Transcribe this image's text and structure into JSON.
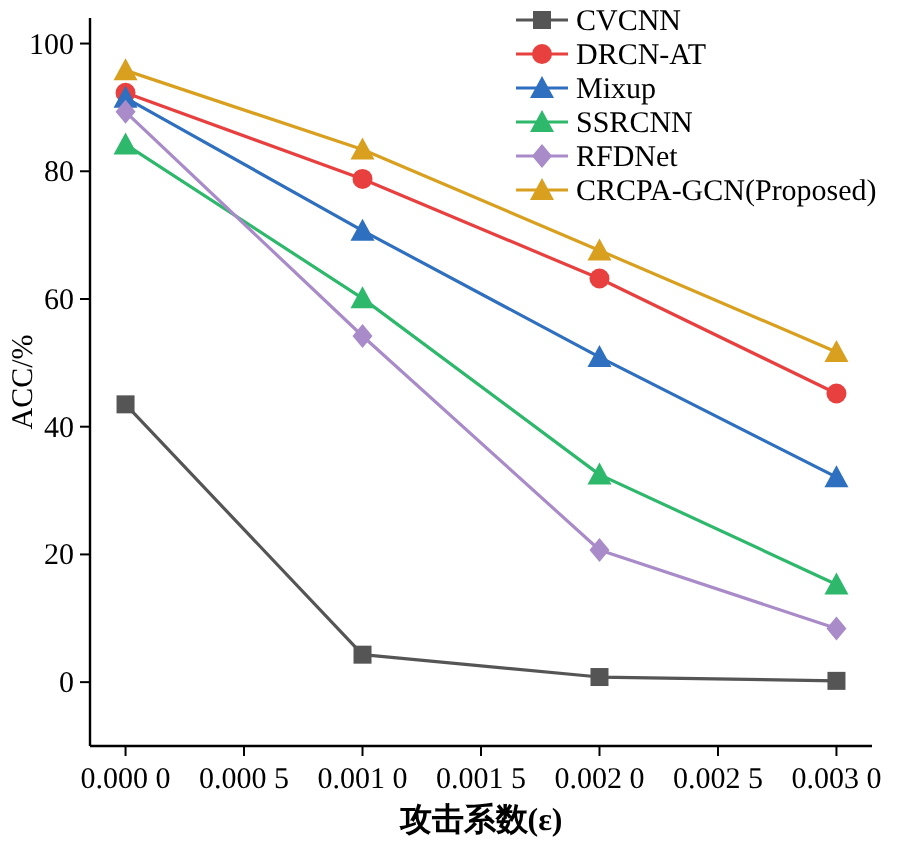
{
  "chart_data": {
    "type": "line",
    "xlabel": "攻击系数(ε)",
    "ylabel": "ACC/%",
    "categories": [
      "0.000 0",
      "0.000 5",
      "0.001 0",
      "0.001 5",
      "0.002 0",
      "0.002 5",
      "0.003 0"
    ],
    "ylim": [
      -10,
      104
    ],
    "yticks": [
      0,
      20,
      40,
      60,
      80,
      100
    ],
    "grid": false,
    "legend": "top right",
    "line_style": "solid",
    "series": [
      {
        "name": "CVCNN",
        "color": "#555555",
        "marker": "square",
        "x": [
          "0.000 0",
          "0.001 0",
          "0.002 0",
          "0.003 0"
        ],
        "values": [
          43.5,
          4.3,
          0.8,
          0.2
        ]
      },
      {
        "name": "DRCN-AT",
        "color": "#e8403f",
        "marker": "circle",
        "x": [
          "0.000 0",
          "0.001 0",
          "0.002 0",
          "0.003 0"
        ],
        "values": [
          92.3,
          78.8,
          63.2,
          45.2
        ]
      },
      {
        "name": "Mixup",
        "color": "#2f6fbf",
        "marker": "triangle",
        "x": [
          "0.000 0",
          "0.001 0",
          "0.002 0",
          "0.003 0"
        ],
        "values": [
          91.5,
          70.7,
          50.9,
          32.1
        ]
      },
      {
        "name": "SSRCNN",
        "color": "#2db86b",
        "marker": "triangle",
        "x": [
          "0.000 0",
          "0.001 0",
          "0.002 0",
          "0.003 0"
        ],
        "values": [
          84.2,
          60.1,
          32.5,
          15.3
        ]
      },
      {
        "name": "RFDNet",
        "color": "#a88bc8",
        "marker": "diamond",
        "x": [
          "0.000 0",
          "0.001 0",
          "0.002 0",
          "0.003 0"
        ],
        "values": [
          89.3,
          54.2,
          20.7,
          8.4
        ]
      },
      {
        "name": "CRCPA-GCN(Proposed)",
        "color": "#d9a020",
        "marker": "triangle",
        "x": [
          "0.000 0",
          "0.001 0",
          "0.002 0",
          "0.003 0"
        ],
        "values": [
          95.8,
          83.4,
          67.6,
          51.7
        ]
      }
    ]
  }
}
